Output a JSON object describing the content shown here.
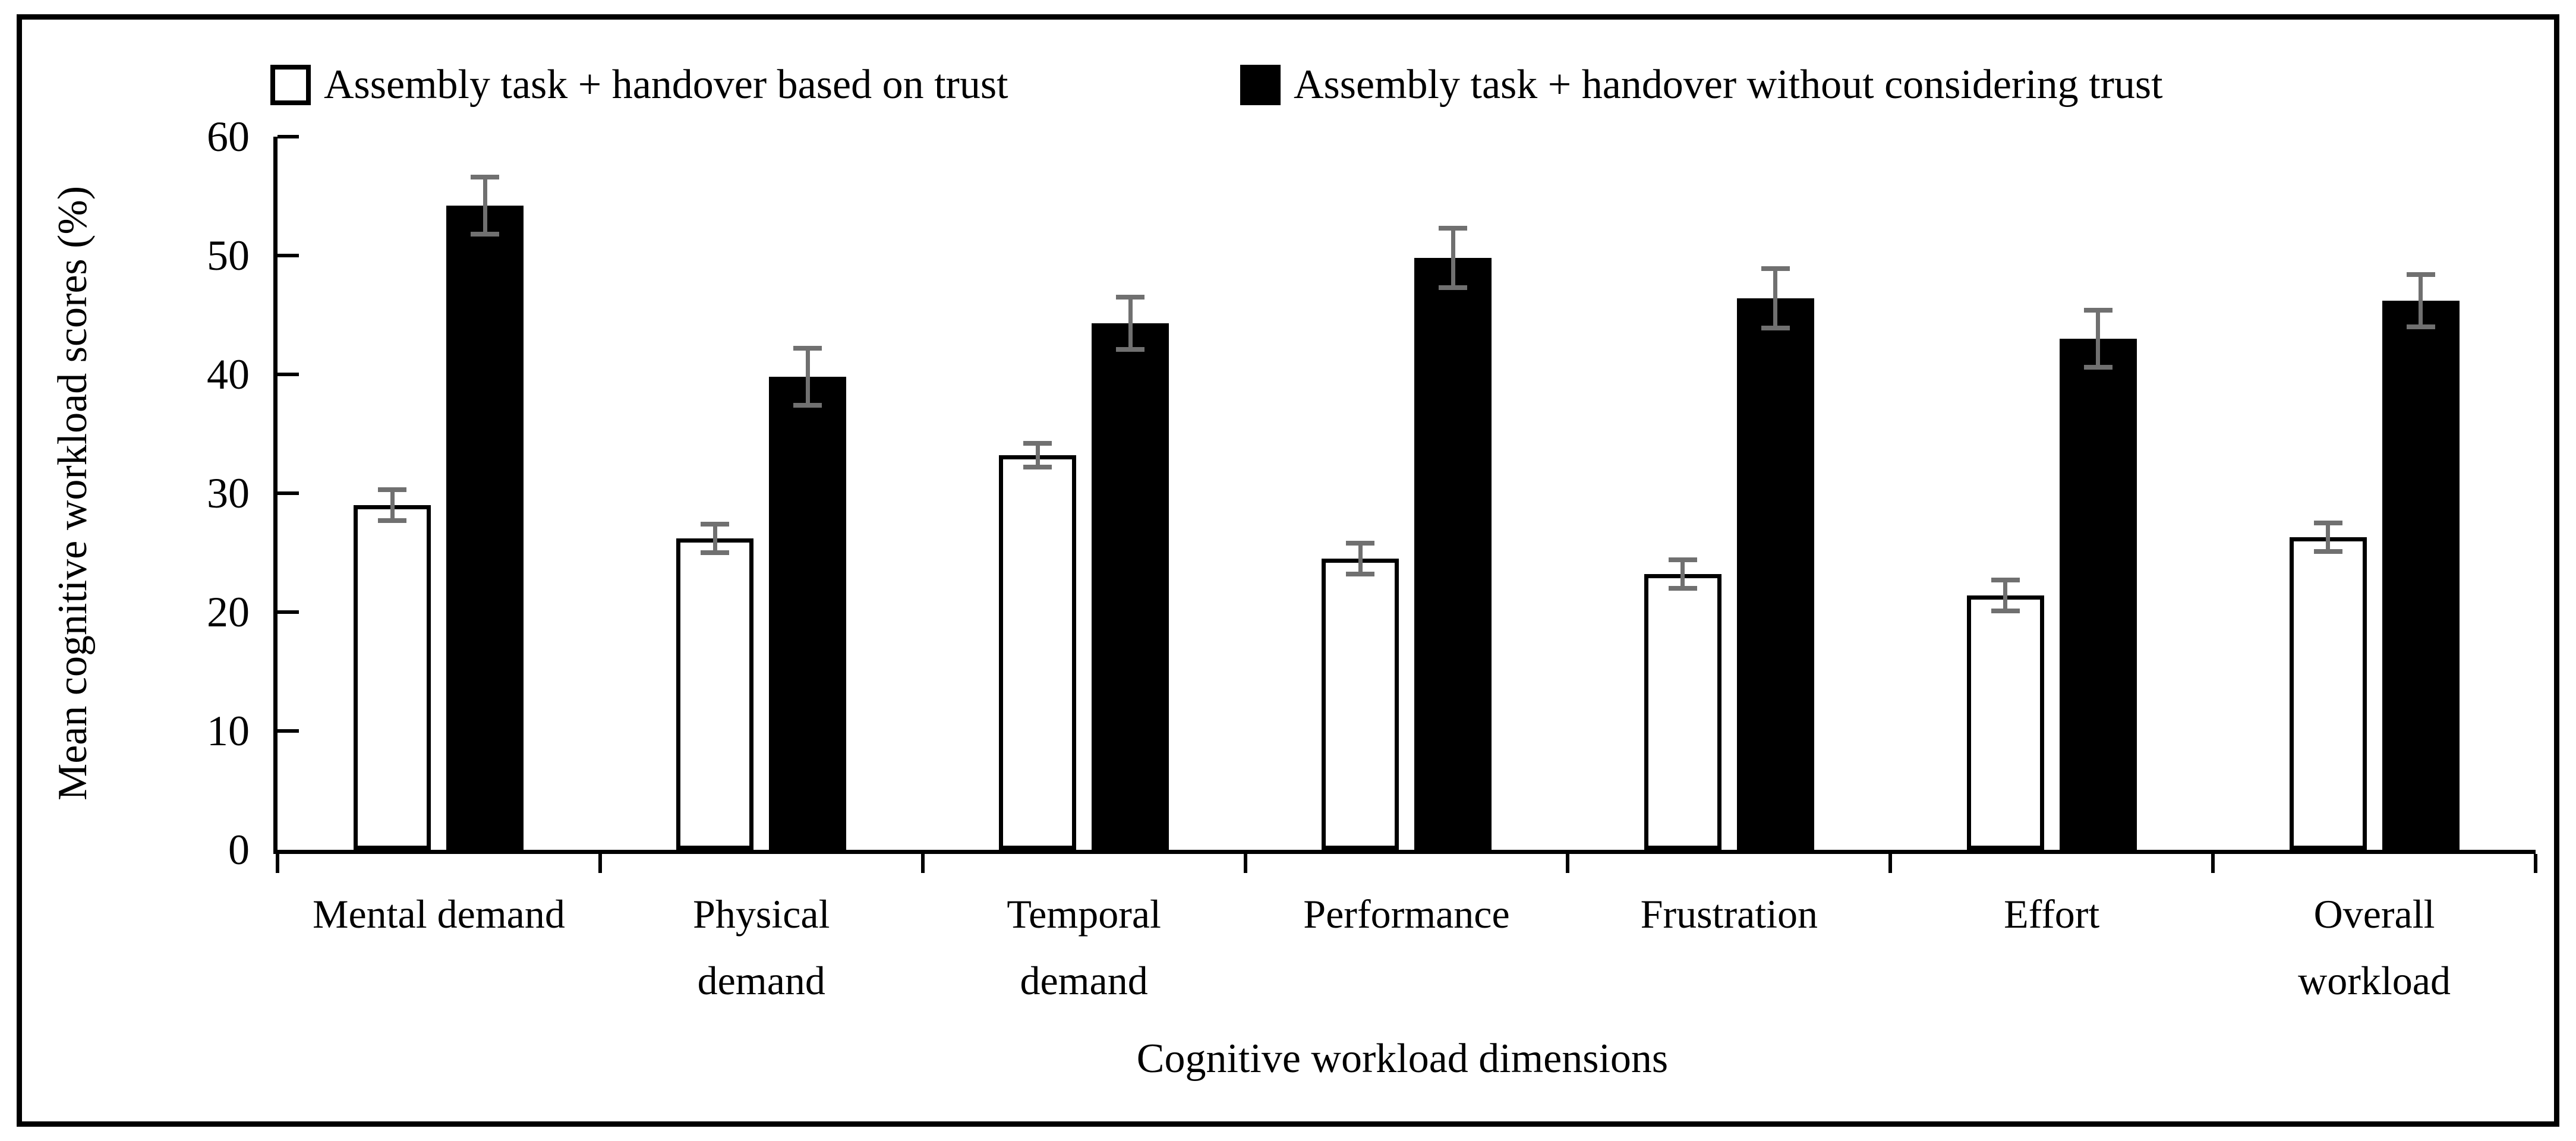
{
  "figure": {
    "background": "#ffffff",
    "border_color": "#000000"
  },
  "chart_data": {
    "type": "bar",
    "title": "",
    "xlabel": "Cognitive workload dimensions",
    "ylabel": "Mean cognitive workload scores (%)",
    "ylim": [
      0,
      60
    ],
    "ytick_step": 10,
    "yticks": [
      0,
      10,
      20,
      30,
      40,
      50,
      60
    ],
    "grid": false,
    "legend_position": "top",
    "error_color": "#707070",
    "categories": [
      "Mental demand",
      "Physical demand",
      "Temporal demand",
      "Performance",
      "Frustration",
      "Effort",
      "Overall workload"
    ],
    "category_label_lines": [
      [
        "Mental demand"
      ],
      [
        "Physical",
        "demand"
      ],
      [
        "Temporal",
        "demand"
      ],
      [
        "Performance"
      ],
      [
        "Frustration"
      ],
      [
        "Effort"
      ],
      [
        "Overall",
        "workload"
      ]
    ],
    "series": [
      {
        "name": "Assembly task + handover based on trust",
        "swatch": "hollow",
        "fill": "#ffffff",
        "border": "#000000",
        "values": [
          29.0,
          26.2,
          33.2,
          24.5,
          23.2,
          21.4,
          26.3
        ],
        "errors": [
          1.3,
          1.2,
          1.0,
          1.3,
          1.2,
          1.3,
          1.2
        ]
      },
      {
        "name": "Assembly task + handover without considering trust",
        "swatch": "filled",
        "fill": "#000000",
        "border": "#000000",
        "values": [
          54.2,
          39.8,
          44.3,
          49.8,
          46.4,
          43.0,
          46.2
        ],
        "errors": [
          2.4,
          2.4,
          2.2,
          2.5,
          2.5,
          2.4,
          2.2
        ]
      }
    ]
  }
}
